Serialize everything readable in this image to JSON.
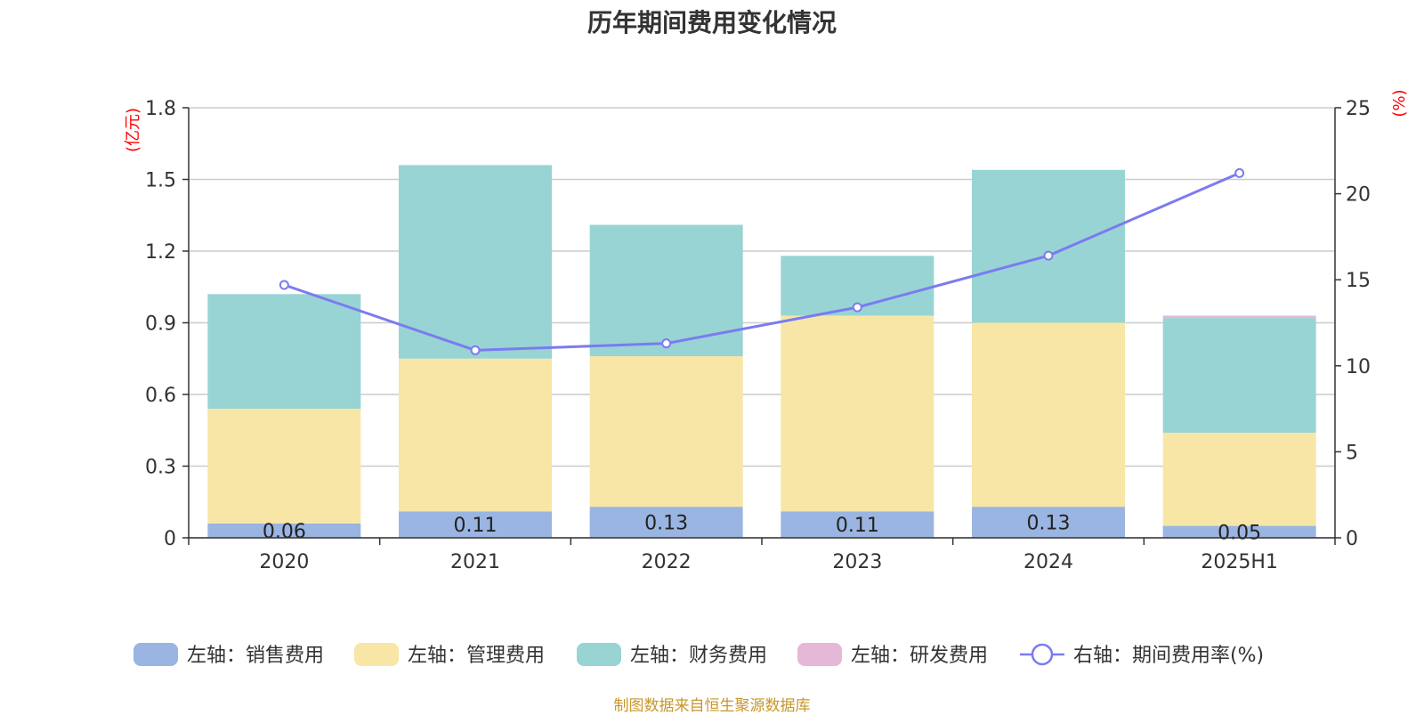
{
  "chart_data": {
    "type": "bar",
    "title": "历年期间费用变化情况",
    "categories": [
      "2020",
      "2021",
      "2022",
      "2023",
      "2024",
      "2025H1"
    ],
    "left_axis": {
      "unit": "(亿元)",
      "ylim": [
        0,
        1.8
      ],
      "ticks": [
        "0",
        "0.3",
        "0.6",
        "0.9",
        "1.2",
        "1.5",
        "1.8"
      ]
    },
    "right_axis": {
      "unit": "(%)",
      "ylim": [
        0,
        25
      ],
      "ticks": [
        "0",
        "5",
        "10",
        "15",
        "20",
        "25"
      ]
    },
    "grid": true,
    "legend_position": "bottom",
    "series": [
      {
        "name": "左轴：销售费用",
        "type": "bar",
        "stack": "left",
        "color": "#9ab5e1",
        "values": [
          0.06,
          0.11,
          0.13,
          0.11,
          0.13,
          0.05
        ],
        "labels": [
          "0.06",
          "0.11",
          "0.13",
          "0.11",
          "0.13",
          "0.05"
        ]
      },
      {
        "name": "左轴：管理费用",
        "type": "bar",
        "stack": "left",
        "color": "#f7e6a6",
        "values": [
          0.48,
          0.64,
          0.63,
          0.82,
          0.77,
          0.39
        ]
      },
      {
        "name": "左轴：财务费用",
        "type": "bar",
        "stack": "left",
        "color": "#98d4d4",
        "values": [
          0.48,
          0.81,
          0.55,
          0.25,
          0.64,
          0.48
        ]
      },
      {
        "name": "左轴：研发费用",
        "type": "bar",
        "stack": "left",
        "color": "#e6b8d8",
        "values": [
          0,
          0,
          0,
          0,
          0,
          0.01
        ]
      },
      {
        "name": "右轴：期间费用率(%)",
        "type": "line",
        "axis": "right",
        "color": "#7b7bf0",
        "values": [
          14.7,
          10.9,
          11.3,
          13.4,
          16.4,
          21.2
        ]
      }
    ]
  },
  "footer": {
    "source": "制图数据来自恒生聚源数据库"
  }
}
